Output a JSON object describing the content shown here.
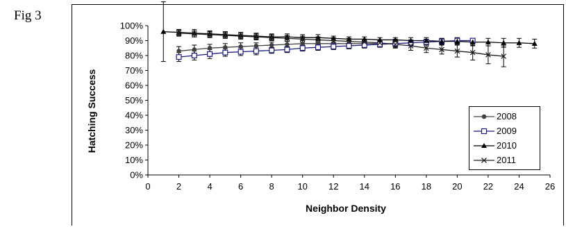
{
  "figure": {
    "label": "Fig 3"
  },
  "chart_data": {
    "type": "line",
    "xlabel": "Neighbor Density",
    "ylabel": "Hatching Success",
    "xlim": [
      0,
      26
    ],
    "ylim": [
      0,
      100
    ],
    "xticks": [
      "0",
      "2",
      "4",
      "6",
      "8",
      "10",
      "12",
      "14",
      "16",
      "18",
      "20",
      "22",
      "24",
      "26"
    ],
    "yticks": [
      "0%",
      "10%",
      "20%",
      "30%",
      "40%",
      "50%",
      "60%",
      "70%",
      "80%",
      "90%",
      "100%"
    ],
    "legend_position": "bottom-right",
    "grid": false,
    "series": [
      {
        "name": "2008",
        "marker": "circle",
        "color": "#404040",
        "x": [
          2,
          3,
          4,
          5,
          6,
          7,
          8,
          9,
          10,
          11,
          12,
          13,
          14,
          15,
          16
        ],
        "y": [
          83,
          84,
          85,
          85.5,
          86,
          86.5,
          87,
          87.5,
          88,
          88,
          88,
          88,
          88,
          88,
          88
        ],
        "err": [
          3,
          3,
          2.5,
          2.5,
          2.5,
          2,
          2,
          2,
          2,
          2,
          2,
          2,
          2,
          2,
          3
        ]
      },
      {
        "name": "2009",
        "marker": "square-open",
        "color": "#1a1a80",
        "x": [
          2,
          3,
          4,
          5,
          6,
          7,
          8,
          9,
          10,
          11,
          12,
          13,
          14,
          15,
          16,
          17,
          18,
          19,
          20,
          21
        ],
        "y": [
          79,
          80,
          81,
          82,
          82.5,
          83,
          83.5,
          84,
          85,
          85.5,
          86,
          86.5,
          87,
          87.5,
          88,
          88.5,
          89,
          89.5,
          90,
          90
        ],
        "err": [
          3,
          3,
          3,
          2.5,
          2.5,
          2.5,
          2,
          2,
          2,
          2,
          2,
          2,
          2,
          2,
          2,
          2,
          2,
          2,
          2,
          1.5
        ]
      },
      {
        "name": "2010",
        "marker": "triangle",
        "color": "#000000",
        "x": [
          1,
          2,
          3,
          4,
          5,
          6,
          7,
          8,
          9,
          10,
          11,
          12,
          13,
          14,
          15,
          16,
          17,
          18,
          19,
          20,
          21,
          22,
          23,
          24,
          25
        ],
        "y": [
          96,
          95.5,
          95,
          94.5,
          94,
          93.5,
          93,
          92.5,
          92.5,
          92,
          92,
          91.5,
          91,
          91,
          90.5,
          90.5,
          90,
          90,
          89.5,
          89.5,
          89,
          89,
          88.5,
          88.5,
          88
        ],
        "err": [
          20,
          2,
          2.5,
          2,
          2,
          2,
          2,
          2,
          2,
          2,
          2,
          1.5,
          1.5,
          1.5,
          1.5,
          1.5,
          2,
          2,
          2,
          2,
          2.5,
          2.5,
          3,
          3,
          3
        ]
      },
      {
        "name": "2011",
        "marker": "x",
        "color": "#222222",
        "x": [
          2,
          3,
          4,
          5,
          6,
          7,
          8,
          9,
          10,
          11,
          12,
          13,
          14,
          15,
          16,
          17,
          18,
          19,
          20,
          21,
          22,
          23
        ],
        "y": [
          95,
          94.5,
          94,
          93.5,
          93,
          92.5,
          92,
          91.5,
          91,
          90.5,
          90,
          89.5,
          89,
          88.5,
          87.5,
          86.5,
          85,
          84,
          83,
          82,
          80.5,
          79.5
        ],
        "err": [
          2,
          2,
          2,
          2,
          2,
          2,
          2,
          2,
          2,
          2,
          2,
          2,
          2,
          2,
          2,
          3,
          3,
          3,
          4,
          5,
          6,
          7
        ]
      }
    ]
  }
}
